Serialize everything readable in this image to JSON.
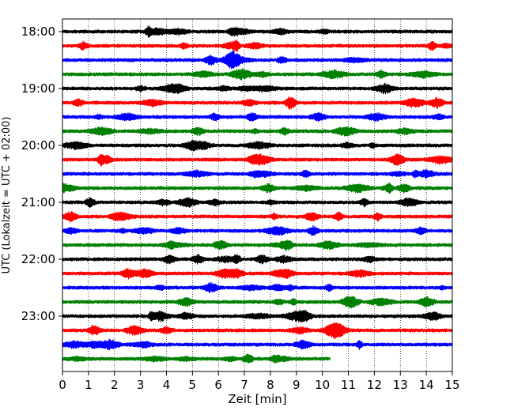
{
  "chart_data": {
    "type": "line",
    "title": "",
    "xlabel": "Zeit  [min]",
    "ylabel": "UTC (Lokalzeit = UTC + 02:00)",
    "xlim": [
      0,
      15
    ],
    "x_ticks": [
      0,
      1,
      2,
      3,
      4,
      5,
      6,
      7,
      8,
      9,
      10,
      11,
      12,
      13,
      14,
      15
    ],
    "x_tick_labels": [
      "0",
      "1",
      "2",
      "3",
      "4",
      "5",
      "6",
      "7",
      "8",
      "9",
      "10",
      "11",
      "12",
      "13",
      "14",
      "15"
    ],
    "y_tick_labels": [
      "18:00",
      "19:00",
      "20:00",
      "21:00",
      "22:00",
      "23:00"
    ],
    "trace_interval_min": 15,
    "first_trace_start": "18:00",
    "color_cycle": [
      "#000000",
      "#ff0000",
      "#0000ff",
      "#008000"
    ],
    "x_grid": true,
    "x_grid_style": "dotted",
    "traces": [
      {
        "start": "18:00",
        "end_min": 15
      },
      {
        "start": "18:15",
        "end_min": 15
      },
      {
        "start": "18:30",
        "end_min": 15
      },
      {
        "start": "18:45",
        "end_min": 15
      },
      {
        "start": "19:00",
        "end_min": 15
      },
      {
        "start": "19:15",
        "end_min": 15
      },
      {
        "start": "19:30",
        "end_min": 15
      },
      {
        "start": "19:45",
        "end_min": 15
      },
      {
        "start": "20:00",
        "end_min": 15
      },
      {
        "start": "20:15",
        "end_min": 15
      },
      {
        "start": "20:30",
        "end_min": 15
      },
      {
        "start": "20:45",
        "end_min": 15
      },
      {
        "start": "21:00",
        "end_min": 15
      },
      {
        "start": "21:15",
        "end_min": 15
      },
      {
        "start": "21:30",
        "end_min": 15
      },
      {
        "start": "21:45",
        "end_min": 15
      },
      {
        "start": "22:00",
        "end_min": 15
      },
      {
        "start": "22:15",
        "end_min": 15
      },
      {
        "start": "22:30",
        "end_min": 15
      },
      {
        "start": "22:45",
        "end_min": 15
      },
      {
        "start": "23:00",
        "end_min": 15
      },
      {
        "start": "23:15",
        "end_min": 15
      },
      {
        "start": "23:30",
        "end_min": 15
      },
      {
        "start": "23:45",
        "end_min": 10.3
      }
    ]
  }
}
